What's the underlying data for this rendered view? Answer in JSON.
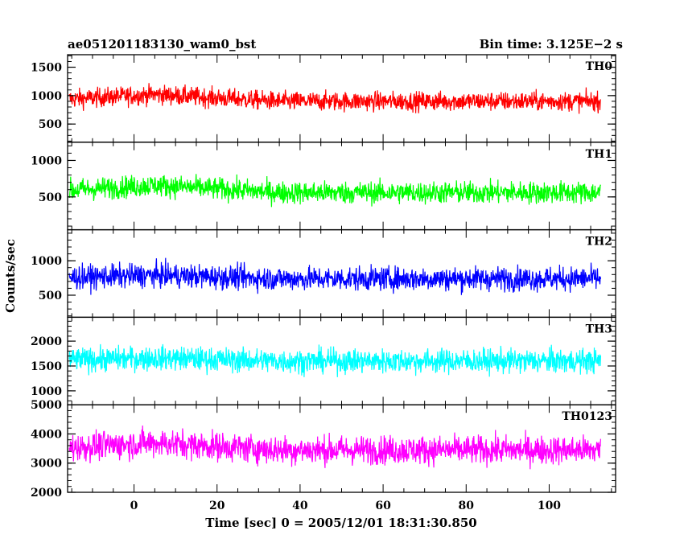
{
  "header": {
    "title": "ae051201183130_wam0_bst",
    "bin_time": "Bin time: 3.125E−2 s"
  },
  "chart_data": {
    "type": "line",
    "xlabel": "Time [sec] 0 = 2005/12/01 18:31:30.850",
    "ylabel": "Counts/sec",
    "xlim": [
      -16,
      116
    ],
    "x_ticks": [
      0,
      20,
      40,
      60,
      80,
      100
    ],
    "x_tick_labels": [
      "0",
      "20",
      "40",
      "60",
      "80",
      "100"
    ],
    "x_data_range": [
      -15.6,
      112.4
    ],
    "grid": false,
    "panels": [
      {
        "name": "TH0",
        "color": "#ff0000",
        "ylim": [
          180,
          1720
        ],
        "yticks": [
          500,
          1000,
          1500
        ],
        "ytick_labels": [
          "500",
          "1000",
          "1500"
        ],
        "mean": 900,
        "mean_early": 1020,
        "spread": 430
      },
      {
        "name": "TH1",
        "color": "#00ff00",
        "ylim": [
          50,
          1250
        ],
        "yticks": [
          500,
          1000
        ],
        "ytick_labels": [
          "500",
          "1000"
        ],
        "mean": 560,
        "mean_early": 660,
        "spread": 390
      },
      {
        "name": "TH2",
        "color": "#0000ff",
        "ylim": [
          180,
          1450
        ],
        "yticks": [
          500,
          1000
        ],
        "ytick_labels": [
          "500",
          "1000"
        ],
        "mean": 740,
        "mean_early": 790,
        "spread": 440
      },
      {
        "name": "TH3",
        "color": "#00ffff",
        "ylim": [
          720,
          2480
        ],
        "yticks": [
          1000,
          1500,
          2000
        ],
        "ytick_labels": [
          "1000",
          "1500",
          "2000"
        ],
        "mean": 1600,
        "mean_early": 1660,
        "spread": 620
      },
      {
        "name": "TH0123",
        "color": "#ff00ff",
        "ylim": [
          2000,
          5000
        ],
        "yticks": [
          2000,
          3000,
          4000,
          5000
        ],
        "ytick_labels": [
          "2000",
          "3000",
          "4000",
          "5000"
        ],
        "mean": 3450,
        "mean_early": 3700,
        "spread": 1250
      }
    ]
  }
}
